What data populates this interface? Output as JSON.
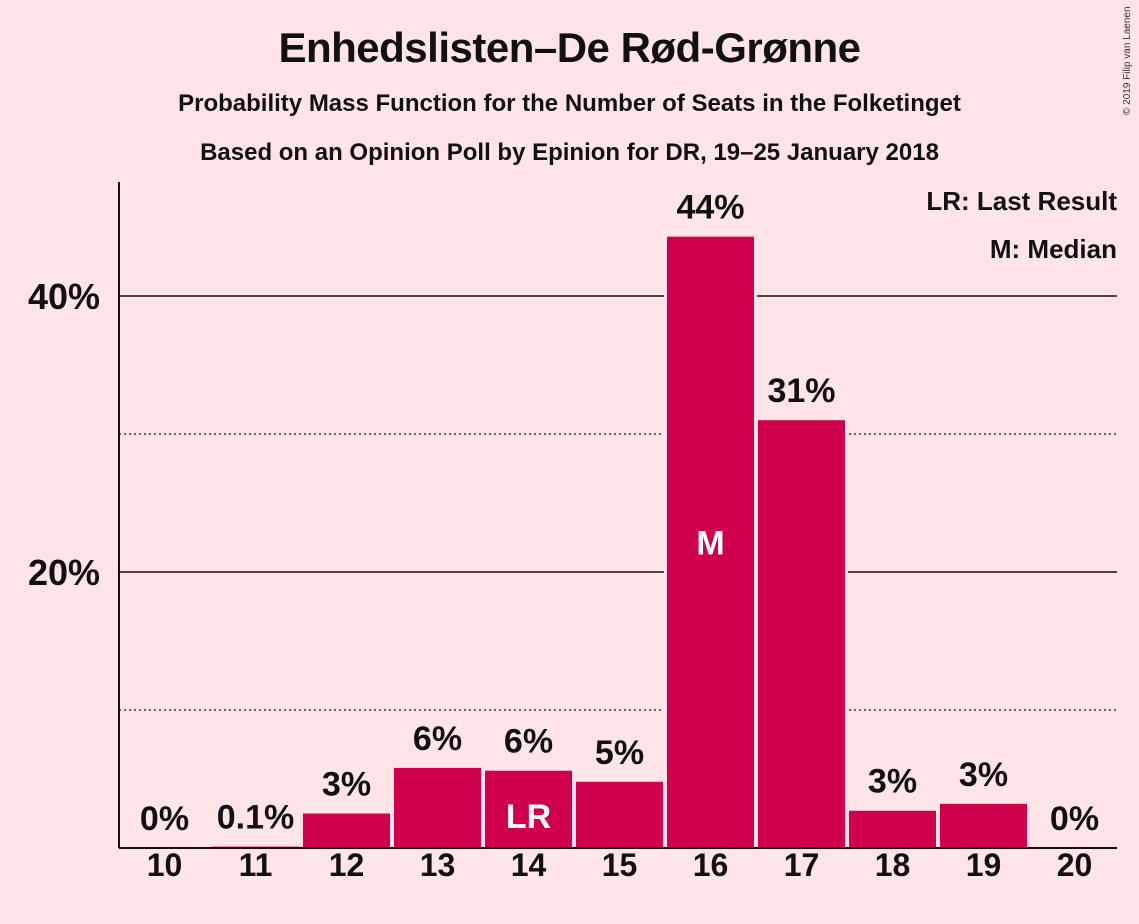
{
  "header": {
    "title": "Enhedslisten–De Rød-Grønne",
    "subtitle": "Probability Mass Function for the Number of Seats in the Folketinget",
    "subtitle2": "Based on an Opinion Poll by Epinion for DR, 19–25 January 2018",
    "copyright": "© 2019 Filip van Laenen"
  },
  "legend": {
    "lr": "LR: Last Result",
    "m": "M: Median",
    "placement": "top-right"
  },
  "colors": {
    "background": "#FFE4E8",
    "bar": "#D0004C",
    "bar_label_inside": "#FFFFFF"
  },
  "chart_data": {
    "type": "bar",
    "title": "Enhedslisten–De Rød-Grønne",
    "categories": [
      "10",
      "11",
      "12",
      "13",
      "14",
      "15",
      "16",
      "17",
      "18",
      "19",
      "20"
    ],
    "values": [
      0,
      0.1,
      2.5,
      5.8,
      5.6,
      4.8,
      44.3,
      31.0,
      2.7,
      3.2,
      0
    ],
    "data_labels": [
      "0%",
      "0.1%",
      "3%",
      "6%",
      "6%",
      "5%",
      "44%",
      "31%",
      "3%",
      "3%",
      "0%"
    ],
    "markers": {
      "14": "LR",
      "16": "M"
    },
    "ylim": [
      0,
      48
    ],
    "yticks_major": [
      20,
      40
    ],
    "ytick_labels": [
      "20%",
      "40%"
    ],
    "yticks_minor": [
      10,
      30
    ],
    "grid": true,
    "xlabel": "",
    "ylabel": ""
  }
}
